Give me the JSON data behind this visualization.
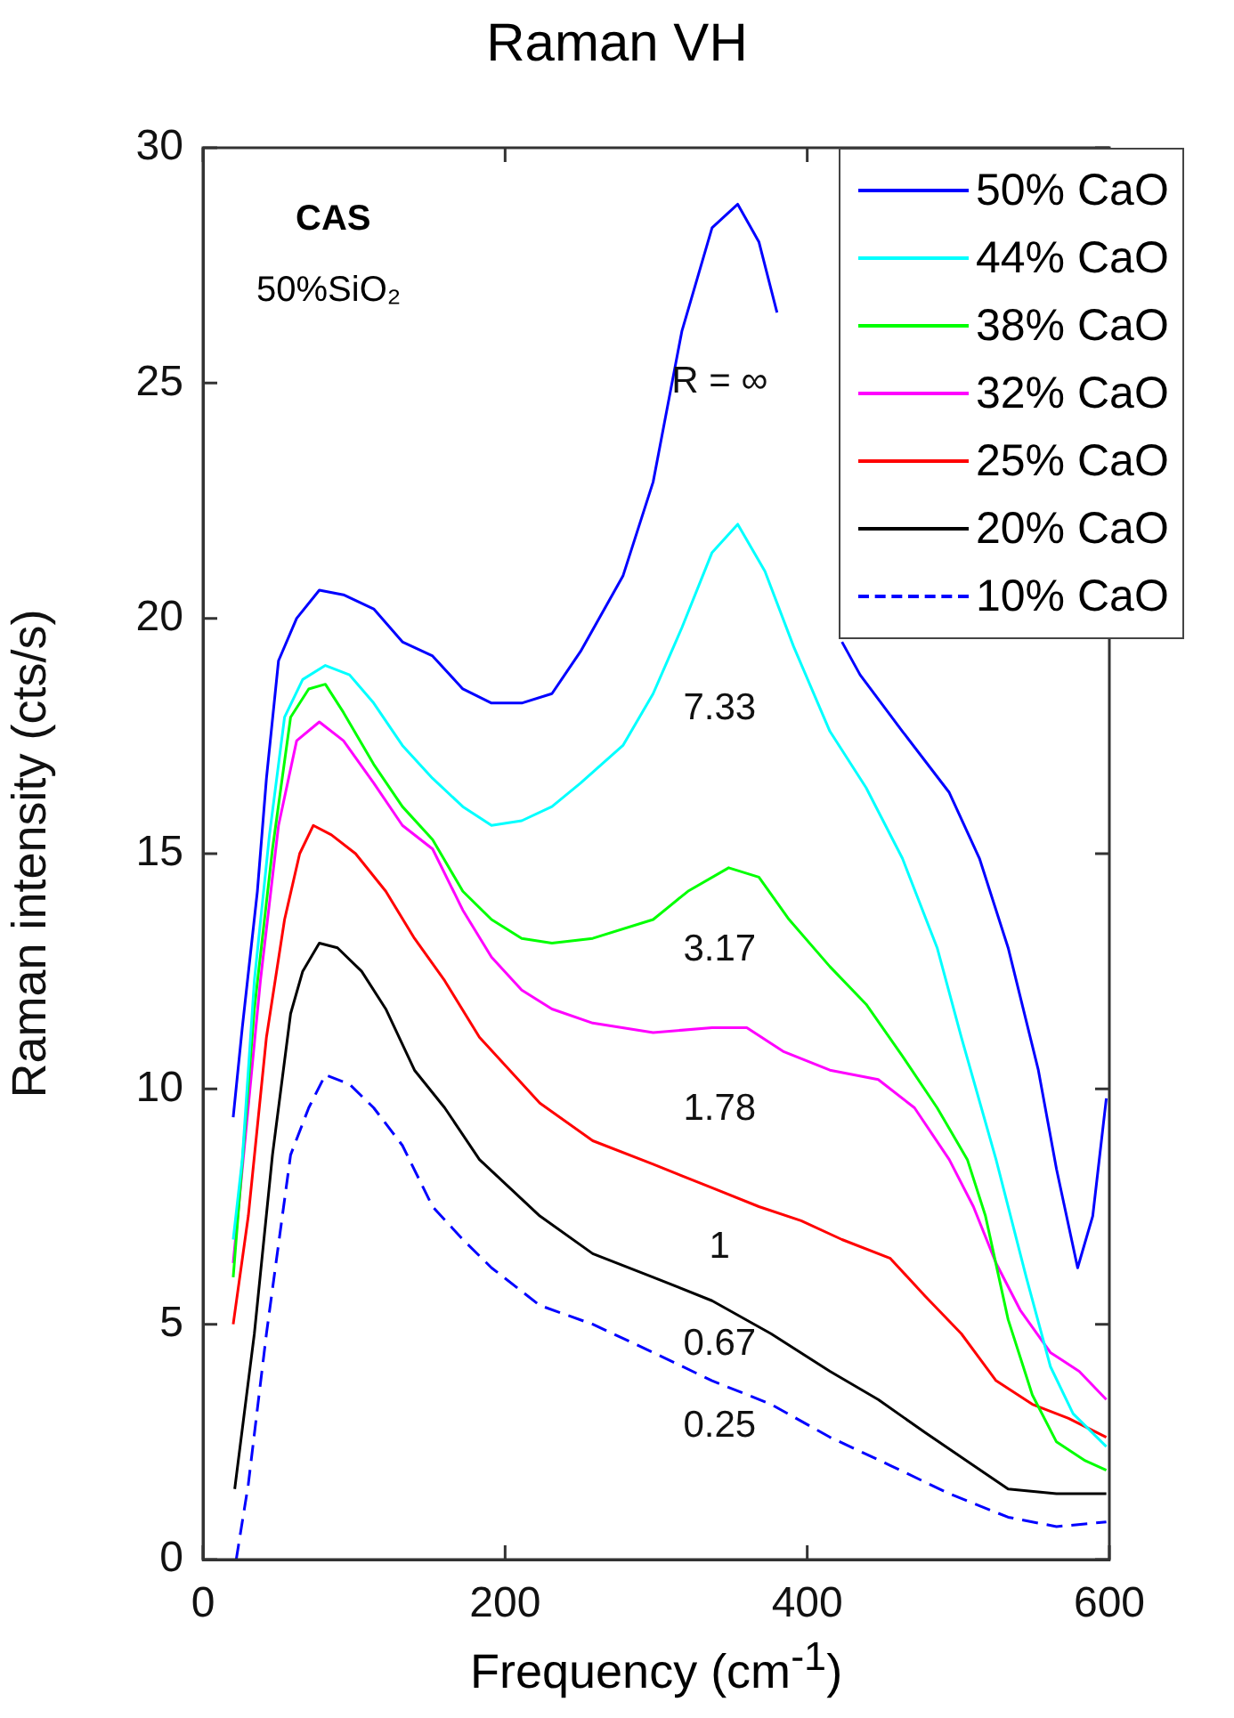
{
  "chart_data": {
    "type": "line",
    "title": "Raman VH",
    "xlabel": "Frequency (cm$^{-1}$)",
    "ylabel": "Raman intensity (cts/s)",
    "xlim": [
      0,
      600
    ],
    "xticks": [
      0,
      200,
      400,
      600
    ],
    "ylim": [
      0,
      30
    ],
    "yticks": [
      0,
      5,
      10,
      15,
      20,
      25,
      30
    ],
    "legend": "top right",
    "series": [
      {
        "name": "50% CaO",
        "color": "#0000ff",
        "line_style": "solid",
        "x": [
          20,
          26,
          36,
          42,
          50,
          62,
          77,
          93,
          113,
          132,
          152,
          172,
          191,
          211,
          231,
          250,
          278,
          298,
          317,
          337,
          354,
          368,
          380,
          400,
          423,
          435,
          463,
          494,
          514,
          533,
          553,
          565,
          579,
          589,
          598
        ],
        "values": [
          9.4,
          11.3,
          14.2,
          16.6,
          19.1,
          20.0,
          20.6,
          20.5,
          20.2,
          19.5,
          19.2,
          18.5,
          18.2,
          18.2,
          18.4,
          19.3,
          20.9,
          22.9,
          26.1,
          28.3,
          28.8,
          28.0,
          26.5,
          null,
          19.5,
          18.8,
          17.6,
          16.3,
          14.9,
          13.0,
          10.4,
          8.3,
          6.2,
          7.3,
          9.8
        ]
      },
      {
        "name": "44% CaO",
        "color": "#00ffff",
        "line_style": "solid",
        "x": [
          20,
          26,
          34,
          44,
          54,
          66,
          81,
          97,
          113,
          132,
          152,
          172,
          191,
          211,
          231,
          250,
          278,
          298,
          317,
          337,
          354,
          372,
          391,
          415,
          439,
          463,
          486,
          502,
          525,
          545,
          561,
          576,
          598
        ],
        "values": [
          6.8,
          8.5,
          12.3,
          15.4,
          17.9,
          18.7,
          19.0,
          18.8,
          18.2,
          17.3,
          16.6,
          16.0,
          15.6,
          15.7,
          16.0,
          16.5,
          17.3,
          18.4,
          19.8,
          21.4,
          22.0,
          21.0,
          19.4,
          17.6,
          16.4,
          14.9,
          13.0,
          11.1,
          8.5,
          6.0,
          4.1,
          3.1,
          2.4
        ]
      },
      {
        "name": "38% CaO",
        "color": "#00ff00",
        "line_style": "solid",
        "x": [
          20,
          34,
          46,
          58,
          70,
          81,
          93,
          113,
          132,
          152,
          172,
          191,
          211,
          231,
          258,
          298,
          321,
          348,
          368,
          388,
          415,
          439,
          463,
          486,
          506,
          518,
          533,
          549,
          565,
          584,
          598
        ],
        "values": [
          6.0,
          11.7,
          15.1,
          17.9,
          18.5,
          18.6,
          18.0,
          16.9,
          16.0,
          15.3,
          14.2,
          13.6,
          13.2,
          13.1,
          13.2,
          13.6,
          14.2,
          14.7,
          14.5,
          13.6,
          12.6,
          11.8,
          10.7,
          9.6,
          8.5,
          7.3,
          5.1,
          3.5,
          2.5,
          2.1,
          1.9
        ]
      },
      {
        "name": "32% CaO",
        "color": "#ff00ff",
        "line_style": "solid",
        "x": [
          20,
          38,
          50,
          62,
          77,
          93,
          113,
          132,
          152,
          172,
          191,
          211,
          231,
          258,
          298,
          337,
          360,
          384,
          415,
          447,
          471,
          494,
          510,
          525,
          541,
          561,
          580,
          598
        ],
        "values": [
          6.3,
          12.3,
          15.6,
          17.4,
          17.8,
          17.4,
          16.5,
          15.6,
          15.1,
          13.8,
          12.8,
          12.1,
          11.7,
          11.4,
          11.2,
          11.3,
          11.3,
          10.8,
          10.4,
          10.2,
          9.6,
          8.5,
          7.5,
          6.3,
          5.3,
          4.4,
          4.0,
          3.4
        ]
      },
      {
        "name": "25% CaO",
        "color": "#ff0000",
        "line_style": "solid",
        "x": [
          20,
          30,
          42,
          54,
          64,
          73,
          85,
          101,
          121,
          140,
          160,
          183,
          203,
          223,
          258,
          298,
          337,
          368,
          396,
          423,
          455,
          478,
          502,
          525,
          549,
          573,
          598
        ],
        "values": [
          5.0,
          7.3,
          11.1,
          13.6,
          15.0,
          15.6,
          15.4,
          15.0,
          14.2,
          13.2,
          12.3,
          11.1,
          10.4,
          9.7,
          8.9,
          8.4,
          7.9,
          7.5,
          7.2,
          6.8,
          6.4,
          5.6,
          4.8,
          3.8,
          3.3,
          3.0,
          2.6
        ]
      },
      {
        "name": "20% CaO",
        "color": "#000000",
        "line_style": "solid",
        "x": [
          21,
          34,
          46,
          58,
          66,
          77,
          89,
          105,
          121,
          140,
          160,
          183,
          203,
          223,
          258,
          298,
          337,
          376,
          415,
          447,
          478,
          510,
          533,
          565,
          598
        ],
        "values": [
          1.5,
          4.8,
          8.6,
          11.6,
          12.5,
          13.1,
          13.0,
          12.5,
          11.7,
          10.4,
          9.6,
          8.5,
          7.9,
          7.3,
          6.5,
          6.0,
          5.5,
          4.8,
          4.0,
          3.4,
          2.7,
          2.0,
          1.5,
          1.4,
          1.4
        ]
      },
      {
        "name": "10% CaO",
        "color": "#0000ff",
        "line_style": "dashed",
        "x": [
          22,
          30,
          42,
          58,
          70,
          81,
          97,
          113,
          132,
          152,
          172,
          191,
          223,
          258,
          298,
          337,
          376,
          415,
          455,
          494,
          533,
          565,
          598
        ],
        "values": [
          0,
          1.6,
          4.8,
          8.6,
          9.6,
          10.3,
          10.1,
          9.6,
          8.8,
          7.5,
          6.8,
          6.2,
          5.4,
          5.0,
          4.4,
          3.8,
          3.3,
          2.6,
          2.0,
          1.4,
          0.9,
          0.7,
          0.8
        ]
      }
    ],
    "annotations": [
      "CAS",
      "50%SiO₂",
      "R = ∞",
      "7.33",
      "3.17",
      "1.78",
      "1",
      "0.67",
      "0.25"
    ]
  }
}
